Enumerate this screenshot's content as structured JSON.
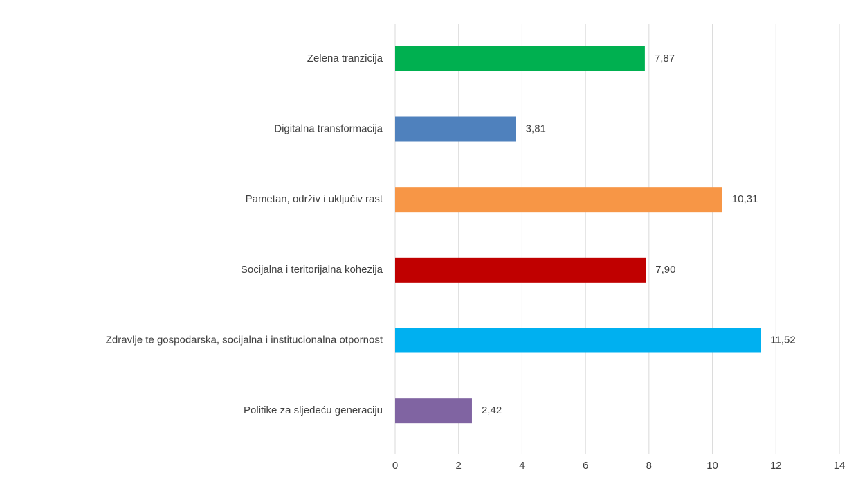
{
  "chart_data": {
    "type": "bar",
    "orientation": "horizontal",
    "categories": [
      "Zelena tranzicija",
      "Digitalna transformacija",
      "Pametan, održiv i uključiv rast",
      "Socijalna i teritorijalna kohezija",
      "Zdravlje te gospodarska, socijalna i institucionalna otpornost",
      "Politike za sljedeću generaciju"
    ],
    "values": [
      7.87,
      3.81,
      10.31,
      7.9,
      11.52,
      2.42
    ],
    "value_labels": [
      "7,87",
      "3,81",
      "10,31",
      "7,90",
      "11,52",
      "2,42"
    ],
    "colors": [
      "#00b050",
      "#4f81bd",
      "#f79646",
      "#c00000",
      "#00b0f0",
      "#8064a2"
    ],
    "xlim": [
      0,
      14
    ],
    "xticks": [
      0,
      2,
      4,
      6,
      8,
      10,
      12,
      14
    ],
    "grid": true
  }
}
